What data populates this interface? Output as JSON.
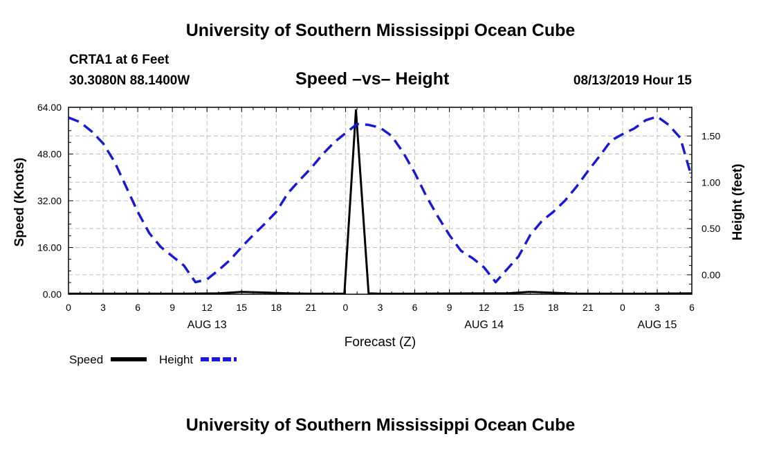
{
  "header": {
    "title": "University of Southern Mississippi Ocean Cube",
    "station": "CRTA1 at 6 Feet",
    "coords": "30.3080N 88.1400W",
    "plot_title": "Speed –vs– Height",
    "datetime": "08/13/2019 Hour 15"
  },
  "footer": {
    "title": "University of Southern Mississippi Ocean Cube"
  },
  "chart_data": {
    "type": "line",
    "title": "Speed –vs– Height",
    "xlabel": "Forecast (Z)",
    "ylabel": "Speed (Knots)",
    "y2label": "Height (feet)",
    "xlim": [
      0,
      54
    ],
    "ylim": [
      0,
      64
    ],
    "y2lim": [
      -0.21,
      1.81
    ],
    "x_tick_values": [
      0,
      3,
      6,
      9,
      12,
      15,
      18,
      21,
      24,
      27,
      30,
      33,
      36,
      39,
      42,
      45,
      48,
      51,
      54
    ],
    "x_tick_labels": [
      "0",
      "3",
      "6",
      "9",
      "12",
      "15",
      "18",
      "21",
      "0",
      "3",
      "6",
      "9",
      "12",
      "15",
      "18",
      "21",
      "0",
      "3",
      "6"
    ],
    "date_labels": [
      {
        "x": 12,
        "label": "AUG 13"
      },
      {
        "x": 36,
        "label": "AUG 14"
      },
      {
        "x": 51,
        "label": "AUG 15"
      }
    ],
    "y_ticks": [
      {
        "value": 0,
        "label": "0.00"
      },
      {
        "value": 16,
        "label": "16.00"
      },
      {
        "value": 32,
        "label": "32.00"
      },
      {
        "value": 48,
        "label": "48.00"
      },
      {
        "value": 64,
        "label": "64.00"
      }
    ],
    "y2_ticks": [
      {
        "value": 0.0,
        "label": "0.00"
      },
      {
        "value": 0.5,
        "label": "0.50"
      },
      {
        "value": 1.0,
        "label": "1.00"
      },
      {
        "value": 1.5,
        "label": "1.50"
      }
    ],
    "series": [
      {
        "name": "Speed",
        "axis": "left",
        "color": "#000000",
        "style": "solid",
        "x": [
          0,
          10,
          13,
          15,
          17,
          19,
          21,
          23.9,
          24.9,
          26,
          27,
          30,
          36,
          38,
          40,
          42,
          44,
          50,
          54
        ],
        "y": [
          0.2,
          0.2,
          0.3,
          0.8,
          0.6,
          0.3,
          0.2,
          0.2,
          63,
          0.3,
          0.2,
          0.2,
          0.3,
          0.3,
          0.8,
          0.5,
          0.2,
          0.2,
          0.3
        ]
      },
      {
        "name": "Height",
        "axis": "right",
        "color": "#1a1ad6",
        "style": "dashed",
        "x": [
          0,
          1,
          2,
          3,
          4,
          5,
          6,
          7,
          8,
          9,
          10,
          11,
          12,
          13,
          14,
          15,
          16,
          17,
          18,
          19,
          20,
          21,
          22,
          23,
          24,
          25,
          26,
          27,
          28,
          29,
          30,
          31,
          32,
          33,
          34,
          35,
          36,
          37,
          38,
          39,
          40,
          41,
          42,
          43,
          44,
          45,
          46,
          47,
          48,
          49,
          50,
          51,
          52,
          53,
          54
        ],
        "y": [
          1.7,
          1.65,
          1.55,
          1.42,
          1.22,
          0.95,
          0.68,
          0.45,
          0.3,
          0.2,
          0.1,
          -0.08,
          -0.05,
          0.05,
          0.16,
          0.3,
          0.43,
          0.55,
          0.68,
          0.88,
          1.02,
          1.15,
          1.3,
          1.43,
          1.53,
          1.63,
          1.62,
          1.59,
          1.5,
          1.32,
          1.1,
          0.85,
          0.63,
          0.43,
          0.26,
          0.18,
          0.08,
          -0.08,
          0.06,
          0.2,
          0.43,
          0.58,
          0.68,
          0.8,
          0.95,
          1.12,
          1.28,
          1.45,
          1.52,
          1.58,
          1.67,
          1.71,
          1.62,
          1.48,
          1.05
        ]
      }
    ],
    "legend": [
      {
        "label": "Speed",
        "color": "#000000",
        "style": "solid"
      },
      {
        "label": "Height",
        "color": "#1a1ad6",
        "style": "dashed"
      }
    ],
    "grid": true,
    "legend_position": "bottom-left"
  }
}
